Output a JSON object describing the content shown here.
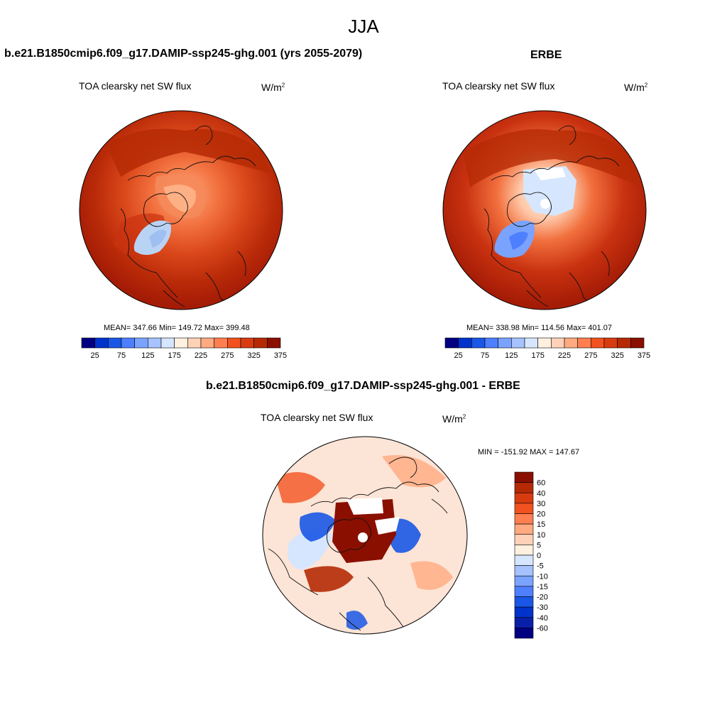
{
  "page": {
    "title": "JJA"
  },
  "panels": [
    {
      "id": "model",
      "title": "b.e21.B1850cmip6.f09_g17.DAMIP-ssp245-ghg.001 (yrs 2055-2079)",
      "variable": "TOA clearsky net SW flux",
      "units_base": "W/m",
      "units_exp": "2",
      "stats": "MEAN= 347.66  Min= 149.72  Max= 399.48"
    },
    {
      "id": "obs",
      "title": "ERBE",
      "variable": "TOA clearsky net SW flux",
      "units_base": "W/m",
      "units_exp": "2",
      "stats": "MEAN= 338.98  Min= 114.56  Max= 401.07"
    },
    {
      "id": "diff",
      "title": "b.e21.B1850cmip6.f09_g17.DAMIP-ssp245-ghg.001 - ERBE",
      "variable": "TOA clearsky net SW flux",
      "units_base": "W/m",
      "units_exp": "2",
      "stats": "MIN = -151.92 MAX = 147.67"
    }
  ],
  "colorbars": {
    "absolute": {
      "orientation": "horizontal",
      "colors": [
        "#000080",
        "#0033cc",
        "#1a57e6",
        "#4d7fff",
        "#7aa3ff",
        "#a6c2ff",
        "#d6e6ff",
        "#fff0e0",
        "#ffd2b8",
        "#ffaa80",
        "#ff7f50",
        "#f2521f",
        "#d93b10",
        "#b52a05",
        "#8a0f00"
      ],
      "labels": [
        "25",
        "75",
        "125",
        "175",
        "225",
        "275",
        "325",
        "375"
      ]
    },
    "difference": {
      "orientation": "vertical",
      "colors_top_to_bottom": [
        "#8a0f00",
        "#b52a05",
        "#d93b10",
        "#f2521f",
        "#ff7f50",
        "#ffaa80",
        "#ffd2b8",
        "#fff0e0",
        "#d6e6ff",
        "#a6c2ff",
        "#7aa3ff",
        "#4d7fff",
        "#1a57e6",
        "#0033cc",
        "#0a1fa8",
        "#000080"
      ],
      "labels": [
        "60",
        "40",
        "30",
        "20",
        "15",
        "10",
        "5",
        "0",
        "-5",
        "-10",
        "-15",
        "-20",
        "-30",
        "-40",
        "-60"
      ]
    }
  },
  "colors": {
    "field_dark": "#a51c06",
    "field_mid": "#c93210",
    "field_light": "#f06a38",
    "sea_ice_blue": "#b9d3f5",
    "diff_bg": "#fce4d6"
  }
}
